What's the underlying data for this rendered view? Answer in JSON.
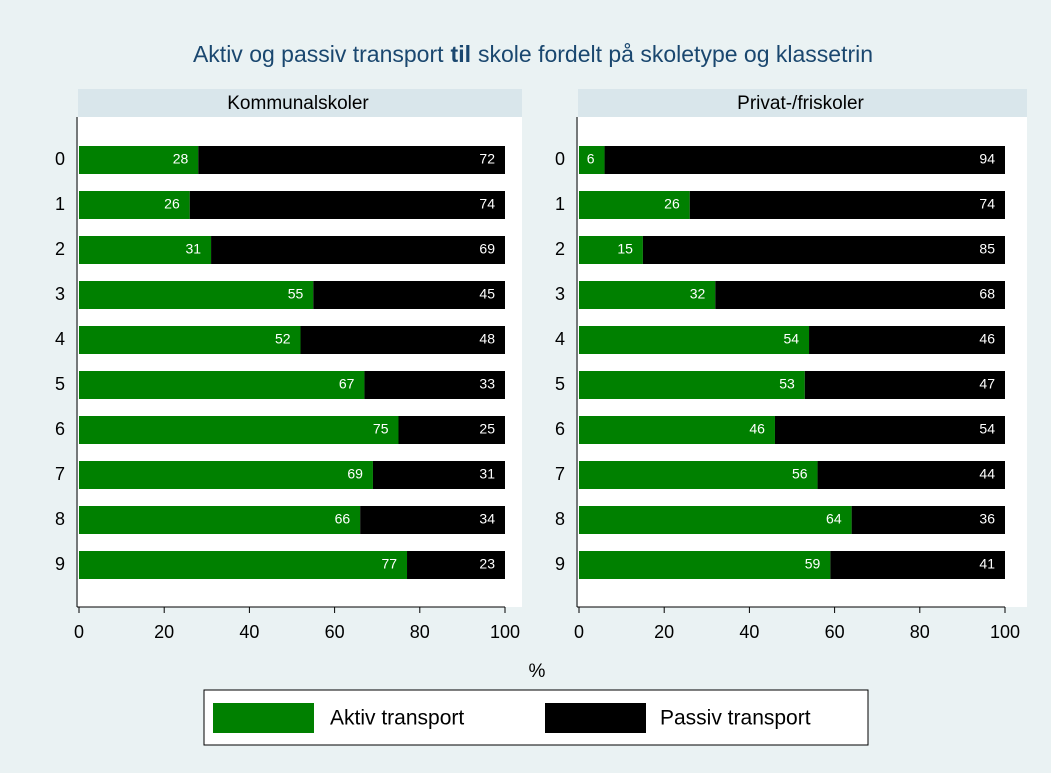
{
  "title": [
    "Aktiv og passiv transport",
    "til",
    "skole fordelt på skoletype og klassetrin"
  ],
  "x_label": "%",
  "chart_data": [
    {
      "type": "bar",
      "title": "Kommunalskoler",
      "orientation": "horizontal",
      "stacked": true,
      "categories": [
        "0",
        "1",
        "2",
        "3",
        "4",
        "5",
        "6",
        "7",
        "8",
        "9"
      ],
      "series": [
        {
          "name": "Aktiv transport",
          "color": "#008000",
          "values": [
            28,
            26,
            31,
            55,
            52,
            67,
            75,
            69,
            66,
            77
          ]
        },
        {
          "name": "Passiv transport",
          "color": "#000000",
          "values": [
            72,
            74,
            69,
            45,
            48,
            33,
            25,
            31,
            34,
            23
          ]
        }
      ],
      "xlim": [
        0,
        100
      ],
      "xticks": [
        0,
        20,
        40,
        60,
        80,
        100
      ]
    },
    {
      "type": "bar",
      "title": "Privat-/friskoler",
      "orientation": "horizontal",
      "stacked": true,
      "categories": [
        "0",
        "1",
        "2",
        "3",
        "4",
        "5",
        "6",
        "7",
        "8",
        "9"
      ],
      "series": [
        {
          "name": "Aktiv transport",
          "color": "#008000",
          "values": [
            6,
            26,
            15,
            32,
            54,
            53,
            46,
            56,
            64,
            59
          ]
        },
        {
          "name": "Passiv transport",
          "color": "#000000",
          "values": [
            94,
            74,
            85,
            68,
            46,
            47,
            54,
            44,
            36,
            41
          ]
        }
      ],
      "xlim": [
        0,
        100
      ],
      "xticks": [
        0,
        20,
        40,
        60,
        80,
        100
      ]
    }
  ]
}
